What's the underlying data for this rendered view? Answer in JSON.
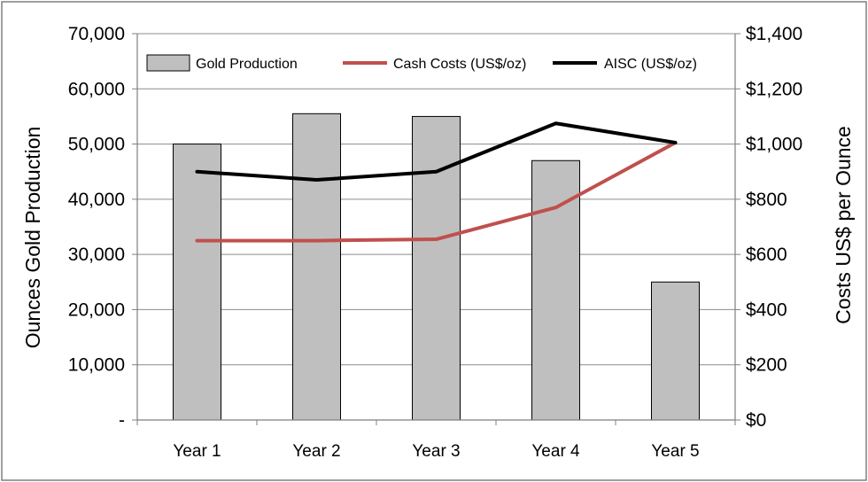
{
  "chart_data": {
    "type": "bar",
    "title": "",
    "categories": [
      "Year 1",
      "Year 2",
      "Year 3",
      "Year 4",
      "Year 5"
    ],
    "series": [
      {
        "name": "Gold Production",
        "kind": "bar",
        "axis": "left",
        "values": [
          50000,
          55500,
          55000,
          47000,
          25000
        ],
        "color": "#bfbfbf"
      },
      {
        "name": "Cash Costs (US$/oz)",
        "kind": "line",
        "axis": "right",
        "values": [
          650,
          650,
          655,
          770,
          1005
        ],
        "color": "#c0504d"
      },
      {
        "name": "AISC (US$/oz)",
        "kind": "line",
        "axis": "right",
        "values": [
          900,
          870,
          900,
          1075,
          1005
        ],
        "color": "#000000"
      }
    ],
    "ylabel": "Ounces Gold Production",
    "y2label": "Costs US$ per Ounce",
    "ylim": [
      0,
      70000
    ],
    "y2lim": [
      0,
      1400
    ],
    "yticks": [
      "-",
      "10,000",
      "20,000",
      "30,000",
      "40,000",
      "50,000",
      "60,000",
      "70,000"
    ],
    "y2ticks": [
      "$0",
      "$200",
      "$400",
      "$600",
      "$800",
      "$1,000",
      "$1,200",
      "$1,400"
    ],
    "grid": true,
    "legend": {
      "position": "top",
      "items": [
        "Gold Production",
        "Cash Costs (US$/oz)",
        "AISC (US$/oz)"
      ]
    }
  }
}
